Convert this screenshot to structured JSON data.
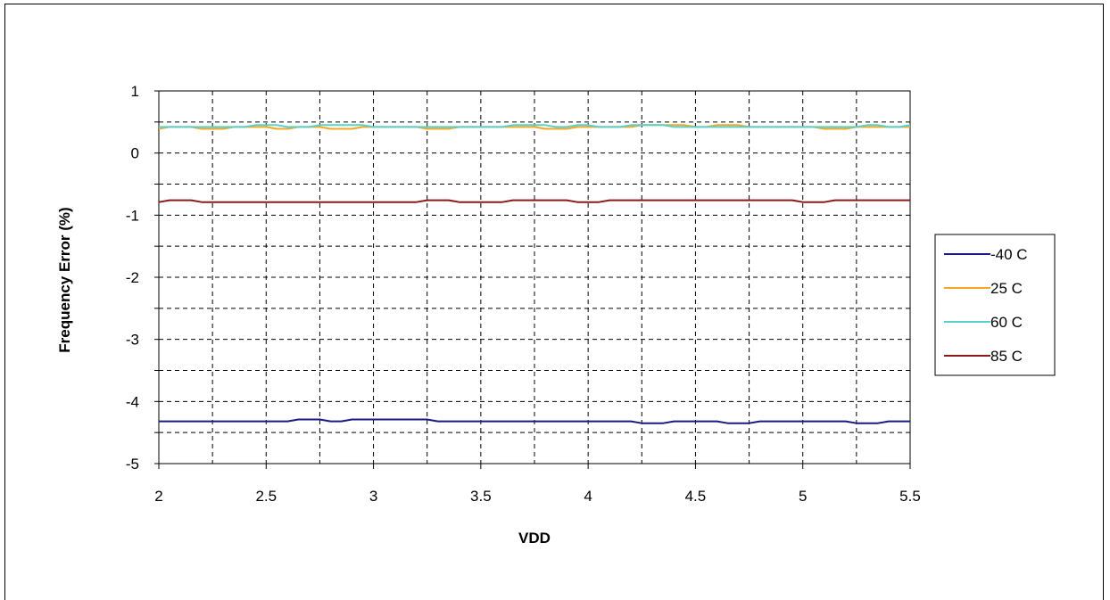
{
  "chart_data": {
    "type": "line",
    "title": "",
    "xlabel": "VDD",
    "ylabel": "Frequency Error (%)",
    "xlim": [
      2,
      5.5
    ],
    "ylim": [
      -5,
      1
    ],
    "x_ticks": [
      "2",
      "2.5",
      "3",
      "3.5",
      "4",
      "4.5",
      "5",
      "5.5"
    ],
    "y_ticks": [
      "1",
      "0",
      "-1",
      "-2",
      "-3",
      "-4",
      "-5"
    ],
    "grid": true,
    "legend_position": "right",
    "x": [
      2.0,
      2.05,
      2.1,
      2.15,
      2.2,
      2.25,
      2.3,
      2.35,
      2.4,
      2.45,
      2.5,
      2.55,
      2.6,
      2.65,
      2.7,
      2.75,
      2.8,
      2.85,
      2.9,
      2.95,
      3.0,
      3.05,
      3.1,
      3.15,
      3.2,
      3.25,
      3.3,
      3.35,
      3.4,
      3.45,
      3.5,
      3.55,
      3.6,
      3.65,
      3.7,
      3.75,
      3.8,
      3.85,
      3.9,
      3.95,
      4.0,
      4.05,
      4.1,
      4.15,
      4.2,
      4.25,
      4.3,
      4.35,
      4.4,
      4.45,
      4.5,
      4.55,
      4.6,
      4.65,
      4.7,
      4.75,
      4.8,
      4.85,
      4.9,
      4.95,
      5.0,
      5.05,
      5.1,
      5.15,
      5.2,
      5.25,
      5.3,
      5.35,
      5.4,
      5.45,
      5.5
    ],
    "series": [
      {
        "name": "-40 C",
        "color": "#1a1a80",
        "values": [
          -4.32,
          -4.32,
          -4.32,
          -4.32,
          -4.32,
          -4.32,
          -4.32,
          -4.32,
          -4.32,
          -4.32,
          -4.32,
          -4.32,
          -4.32,
          -4.29,
          -4.29,
          -4.29,
          -4.32,
          -4.32,
          -4.29,
          -4.29,
          -4.29,
          -4.29,
          -4.29,
          -4.29,
          -4.29,
          -4.29,
          -4.32,
          -4.32,
          -4.32,
          -4.32,
          -4.32,
          -4.32,
          -4.32,
          -4.32,
          -4.32,
          -4.32,
          -4.32,
          -4.32,
          -4.32,
          -4.32,
          -4.32,
          -4.32,
          -4.32,
          -4.32,
          -4.32,
          -4.35,
          -4.35,
          -4.35,
          -4.32,
          -4.32,
          -4.32,
          -4.32,
          -4.32,
          -4.35,
          -4.35,
          -4.35,
          -4.32,
          -4.32,
          -4.32,
          -4.32,
          -4.32,
          -4.32,
          -4.32,
          -4.32,
          -4.32,
          -4.35,
          -4.35,
          -4.35,
          -4.32,
          -4.32,
          -4.32
        ]
      },
      {
        "name": "25 C",
        "color": "#f5a623",
        "values": [
          0.39,
          0.42,
          0.42,
          0.42,
          0.39,
          0.39,
          0.39,
          0.42,
          0.42,
          0.42,
          0.42,
          0.39,
          0.39,
          0.42,
          0.42,
          0.42,
          0.39,
          0.39,
          0.39,
          0.42,
          0.42,
          0.42,
          0.42,
          0.42,
          0.42,
          0.39,
          0.39,
          0.39,
          0.42,
          0.42,
          0.42,
          0.42,
          0.42,
          0.42,
          0.42,
          0.42,
          0.39,
          0.39,
          0.39,
          0.42,
          0.42,
          0.42,
          0.42,
          0.42,
          0.42,
          0.45,
          0.45,
          0.45,
          0.45,
          0.45,
          0.42,
          0.42,
          0.45,
          0.45,
          0.45,
          0.42,
          0.42,
          0.42,
          0.42,
          0.42,
          0.42,
          0.42,
          0.39,
          0.39,
          0.39,
          0.42,
          0.42,
          0.42,
          0.42,
          0.42,
          0.42
        ]
      },
      {
        "name": "60 C",
        "color": "#5ad0cc",
        "values": [
          0.42,
          0.42,
          0.42,
          0.42,
          0.42,
          0.42,
          0.42,
          0.42,
          0.42,
          0.45,
          0.45,
          0.45,
          0.42,
          0.42,
          0.42,
          0.45,
          0.45,
          0.45,
          0.45,
          0.45,
          0.42,
          0.42,
          0.42,
          0.42,
          0.42,
          0.42,
          0.42,
          0.42,
          0.42,
          0.42,
          0.42,
          0.42,
          0.42,
          0.45,
          0.45,
          0.45,
          0.45,
          0.42,
          0.42,
          0.45,
          0.45,
          0.42,
          0.42,
          0.42,
          0.45,
          0.45,
          0.45,
          0.45,
          0.42,
          0.42,
          0.42,
          0.42,
          0.42,
          0.42,
          0.42,
          0.42,
          0.42,
          0.42,
          0.42,
          0.42,
          0.42,
          0.42,
          0.42,
          0.42,
          0.42,
          0.42,
          0.45,
          0.45,
          0.42,
          0.42,
          0.45
        ]
      },
      {
        "name": "85 C",
        "color": "#8b1a1a",
        "values": [
          -0.79,
          -0.76,
          -0.76,
          -0.76,
          -0.79,
          -0.79,
          -0.79,
          -0.79,
          -0.79,
          -0.79,
          -0.79,
          -0.79,
          -0.79,
          -0.79,
          -0.79,
          -0.79,
          -0.79,
          -0.79,
          -0.79,
          -0.79,
          -0.79,
          -0.79,
          -0.79,
          -0.79,
          -0.79,
          -0.76,
          -0.76,
          -0.76,
          -0.79,
          -0.79,
          -0.79,
          -0.79,
          -0.79,
          -0.76,
          -0.76,
          -0.76,
          -0.76,
          -0.76,
          -0.76,
          -0.79,
          -0.79,
          -0.79,
          -0.76,
          -0.76,
          -0.76,
          -0.76,
          -0.76,
          -0.76,
          -0.76,
          -0.76,
          -0.76,
          -0.76,
          -0.76,
          -0.76,
          -0.76,
          -0.76,
          -0.76,
          -0.76,
          -0.76,
          -0.76,
          -0.79,
          -0.79,
          -0.79,
          -0.76,
          -0.76,
          -0.76,
          -0.76,
          -0.76,
          -0.76,
          -0.76,
          -0.76
        ]
      }
    ]
  }
}
